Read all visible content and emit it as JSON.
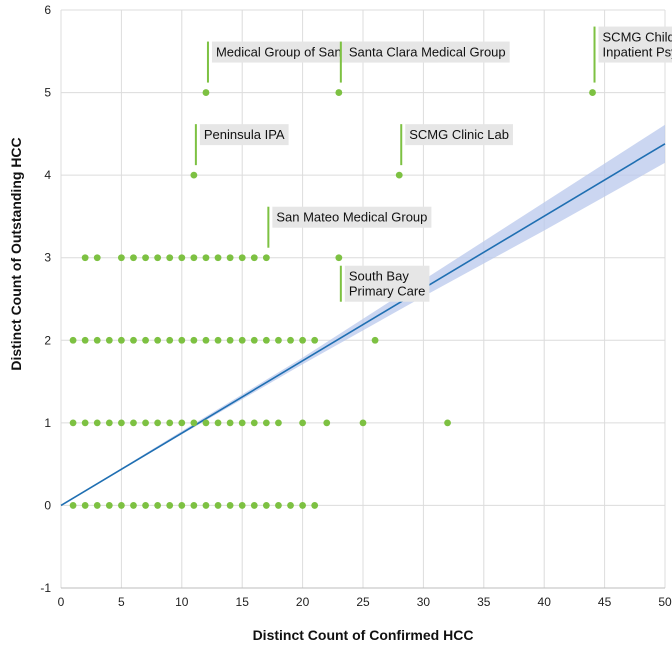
{
  "chart_data": {
    "type": "scatter",
    "title": "",
    "xlabel": "Distinct Count of Confirmed HCC",
    "ylabel": "Distinct Count of Outstanding HCC",
    "xlim": [
      0,
      50
    ],
    "ylim": [
      -1,
      6
    ],
    "xticks": [
      0,
      5,
      10,
      15,
      20,
      25,
      30,
      35,
      40,
      45,
      50
    ],
    "yticks": [
      -1,
      0,
      1,
      2,
      3,
      4,
      5,
      6
    ],
    "grid": true,
    "colors": {
      "points": "#7dc142",
      "trend": "#1f6fb2",
      "band": "#b9c8ec",
      "grid": "#dcdcdc",
      "label_bg": "#e6e6e6"
    },
    "points": [
      {
        "x": 1,
        "y": 0
      },
      {
        "x": 2,
        "y": 0
      },
      {
        "x": 3,
        "y": 0
      },
      {
        "x": 4,
        "y": 0
      },
      {
        "x": 5,
        "y": 0
      },
      {
        "x": 6,
        "y": 0
      },
      {
        "x": 7,
        "y": 0
      },
      {
        "x": 8,
        "y": 0
      },
      {
        "x": 9,
        "y": 0
      },
      {
        "x": 10,
        "y": 0
      },
      {
        "x": 11,
        "y": 0
      },
      {
        "x": 12,
        "y": 0
      },
      {
        "x": 13,
        "y": 0
      },
      {
        "x": 14,
        "y": 0
      },
      {
        "x": 15,
        "y": 0
      },
      {
        "x": 16,
        "y": 0
      },
      {
        "x": 17,
        "y": 0
      },
      {
        "x": 18,
        "y": 0
      },
      {
        "x": 19,
        "y": 0
      },
      {
        "x": 20,
        "y": 0
      },
      {
        "x": 21,
        "y": 0
      },
      {
        "x": 1,
        "y": 1
      },
      {
        "x": 2,
        "y": 1
      },
      {
        "x": 3,
        "y": 1
      },
      {
        "x": 4,
        "y": 1
      },
      {
        "x": 5,
        "y": 1
      },
      {
        "x": 6,
        "y": 1
      },
      {
        "x": 7,
        "y": 1
      },
      {
        "x": 8,
        "y": 1
      },
      {
        "x": 9,
        "y": 1
      },
      {
        "x": 10,
        "y": 1
      },
      {
        "x": 11,
        "y": 1
      },
      {
        "x": 12,
        "y": 1
      },
      {
        "x": 13,
        "y": 1
      },
      {
        "x": 14,
        "y": 1
      },
      {
        "x": 15,
        "y": 1
      },
      {
        "x": 16,
        "y": 1
      },
      {
        "x": 17,
        "y": 1
      },
      {
        "x": 18,
        "y": 1
      },
      {
        "x": 20,
        "y": 1
      },
      {
        "x": 22,
        "y": 1
      },
      {
        "x": 25,
        "y": 1
      },
      {
        "x": 32,
        "y": 1
      },
      {
        "x": 1,
        "y": 2
      },
      {
        "x": 2,
        "y": 2
      },
      {
        "x": 3,
        "y": 2
      },
      {
        "x": 4,
        "y": 2
      },
      {
        "x": 5,
        "y": 2
      },
      {
        "x": 6,
        "y": 2
      },
      {
        "x": 7,
        "y": 2
      },
      {
        "x": 8,
        "y": 2
      },
      {
        "x": 9,
        "y": 2
      },
      {
        "x": 10,
        "y": 2
      },
      {
        "x": 11,
        "y": 2
      },
      {
        "x": 12,
        "y": 2
      },
      {
        "x": 13,
        "y": 2
      },
      {
        "x": 14,
        "y": 2
      },
      {
        "x": 15,
        "y": 2
      },
      {
        "x": 16,
        "y": 2
      },
      {
        "x": 17,
        "y": 2
      },
      {
        "x": 18,
        "y": 2
      },
      {
        "x": 19,
        "y": 2
      },
      {
        "x": 20,
        "y": 2
      },
      {
        "x": 21,
        "y": 2
      },
      {
        "x": 26,
        "y": 2
      },
      {
        "x": 2,
        "y": 3
      },
      {
        "x": 3,
        "y": 3
      },
      {
        "x": 5,
        "y": 3
      },
      {
        "x": 6,
        "y": 3
      },
      {
        "x": 7,
        "y": 3
      },
      {
        "x": 8,
        "y": 3
      },
      {
        "x": 9,
        "y": 3
      },
      {
        "x": 10,
        "y": 3
      },
      {
        "x": 11,
        "y": 3
      },
      {
        "x": 12,
        "y": 3
      },
      {
        "x": 13,
        "y": 3
      },
      {
        "x": 14,
        "y": 3
      },
      {
        "x": 15,
        "y": 3
      },
      {
        "x": 16,
        "y": 3
      },
      {
        "x": 17,
        "y": 3
      },
      {
        "x": 23,
        "y": 3
      },
      {
        "x": 11,
        "y": 4
      },
      {
        "x": 28,
        "y": 4
      },
      {
        "x": 12,
        "y": 5
      },
      {
        "x": 23,
        "y": 5
      },
      {
        "x": 44,
        "y": 5
      }
    ],
    "trend_line": {
      "x": [
        0,
        50
      ],
      "y": [
        0,
        4.38
      ]
    },
    "confidence_band": {
      "x": [
        0,
        10,
        20,
        30,
        40,
        50
      ],
      "lower": [
        0,
        0.86,
        1.71,
        2.53,
        3.33,
        4.15
      ],
      "upper": [
        0,
        0.9,
        1.79,
        2.73,
        3.67,
        4.61
      ]
    },
    "annotations": [
      {
        "lines": [
          "Medical Group of San Jose - Hillsdale"
        ],
        "x": 12,
        "y": 5
      },
      {
        "lines": [
          "Santa Clara Medical Group"
        ],
        "x": 23,
        "y": 5
      },
      {
        "lines": [
          "SCMG Child",
          "Inpatient Psych"
        ],
        "x": 44,
        "y": 5
      },
      {
        "lines": [
          "Peninsula IPA"
        ],
        "x": 11,
        "y": 4
      },
      {
        "lines": [
          "SCMG Clinic Lab"
        ],
        "x": 28,
        "y": 4
      },
      {
        "lines": [
          "San Mateo Medical Group"
        ],
        "x": 17,
        "y": 3
      },
      {
        "lines": [
          "South Bay",
          "Primary Care"
        ],
        "x": 23,
        "y": 3
      }
    ]
  }
}
